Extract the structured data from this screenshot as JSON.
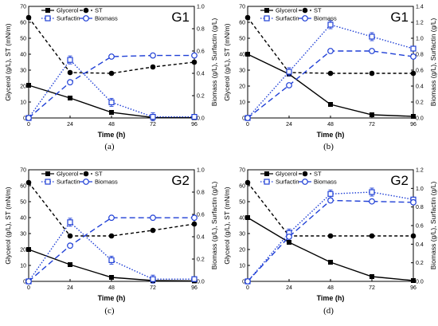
{
  "colors": {
    "black": "#000000",
    "blue": "#1f3fd6"
  },
  "chart_data": [
    {
      "type": "line",
      "panel_title": "G1",
      "caption": "(a)",
      "xlabel": "Time (h)",
      "ylabel_left": "Glycerol (g/L), ST (mN/m)",
      "ylabel_right": "Biomass (g/L), Surfactin (g/L)",
      "x": [
        0,
        24,
        48,
        72,
        96
      ],
      "xticks": [
        "0",
        "24",
        "48",
        "72",
        "96"
      ],
      "ylim_left": [
        0,
        70
      ],
      "yticks_left": [
        "0",
        "10",
        "20",
        "30",
        "40",
        "50",
        "60",
        "70"
      ],
      "ylim_right": [
        0,
        1.0
      ],
      "yticks_right": [
        "0.0",
        "0.2",
        "0.4",
        "0.6",
        "0.8",
        "1.0"
      ],
      "legend": [
        "Glycerol",
        "ST",
        "Surfactin",
        "Biomass"
      ],
      "series": [
        {
          "name": "Glycerol",
          "axis": "left",
          "values": [
            20.5,
            12.5,
            3.5,
            0.3,
            0.2
          ]
        },
        {
          "name": "ST",
          "axis": "left",
          "values": [
            63,
            28.5,
            28,
            32,
            35
          ]
        },
        {
          "name": "Surfactin",
          "axis": "right",
          "values": [
            0.0,
            0.52,
            0.14,
            0.01,
            0.01
          ]
        },
        {
          "name": "Biomass",
          "axis": "right",
          "values": [
            0.0,
            0.32,
            0.55,
            0.56,
            0.56
          ]
        }
      ]
    },
    {
      "type": "line",
      "panel_title": "G1",
      "caption": "(b)",
      "xlabel": "Time (h)",
      "ylabel_left": "Glycerol (g/L), ST (mN/m)",
      "ylabel_right": "Biomass (g/L), Surfactin (g/L)",
      "x": [
        0,
        24,
        48,
        72,
        96
      ],
      "xticks": [
        "0",
        "24",
        "48",
        "72",
        "96"
      ],
      "ylim_left": [
        0,
        70
      ],
      "yticks_left": [
        "0",
        "10",
        "20",
        "30",
        "40",
        "50",
        "60",
        "70"
      ],
      "ylim_right": [
        0,
        1.4
      ],
      "yticks_right": [
        "0.0",
        "0.2",
        "0.4",
        "0.6",
        "0.8",
        "1.0",
        "1.2",
        "1.4"
      ],
      "legend": [
        "Glycerol",
        "ST",
        "Surfactin",
        "Biomass"
      ],
      "series": [
        {
          "name": "Glycerol",
          "axis": "left",
          "values": [
            40,
            27.5,
            8.5,
            2,
            1
          ]
        },
        {
          "name": "ST",
          "axis": "left",
          "values": [
            63,
            28.5,
            28,
            28,
            28
          ]
        },
        {
          "name": "Surfactin",
          "axis": "right",
          "values": [
            0.0,
            0.58,
            1.17,
            1.02,
            0.87
          ]
        },
        {
          "name": "Biomass",
          "axis": "right",
          "values": [
            0.0,
            0.41,
            0.84,
            0.84,
            0.77
          ]
        }
      ]
    },
    {
      "type": "line",
      "panel_title": "G2",
      "caption": "(c)",
      "xlabel": "Time (h)",
      "ylabel_left": "Glycerol (g/L), ST (mN/m)",
      "ylabel_right": "Biomass (g/L), Surfactin (g/L)",
      "x": [
        0,
        24,
        48,
        72,
        96
      ],
      "xticks": [
        "0",
        "24",
        "48",
        "72",
        "96"
      ],
      "ylim_left": [
        0,
        70
      ],
      "yticks_left": [
        "0",
        "10",
        "20",
        "30",
        "40",
        "50",
        "60",
        "70"
      ],
      "ylim_right": [
        0,
        1.0
      ],
      "yticks_right": [
        "0.0",
        "0.2",
        "0.4",
        "0.6",
        "0.8",
        "1.0"
      ],
      "legend": [
        "Glycerol",
        "ST",
        "Surfactin",
        "Biomass"
      ],
      "series": [
        {
          "name": "Glycerol",
          "axis": "left",
          "values": [
            20,
            10.5,
            2.5,
            0.5,
            0.3
          ]
        },
        {
          "name": "ST",
          "axis": "left",
          "values": [
            62,
            28.5,
            28.5,
            32,
            36
          ]
        },
        {
          "name": "Surfactin",
          "axis": "right",
          "values": [
            0.0,
            0.53,
            0.19,
            0.02,
            0.02
          ]
        },
        {
          "name": "Biomass",
          "axis": "right",
          "values": [
            0.0,
            0.32,
            0.57,
            0.57,
            0.57
          ]
        }
      ]
    },
    {
      "type": "line",
      "panel_title": "G2",
      "caption": "(d)",
      "xlabel": "Time (h)",
      "ylabel_left": "Glycerol (g/L), ST (mN/m)",
      "ylabel_right": "Biomass (g/L), Surfactin (g/L)",
      "x": [
        0,
        24,
        48,
        72,
        96
      ],
      "xticks": [
        "0",
        "24",
        "48",
        "72",
        "96"
      ],
      "ylim_left": [
        0,
        70
      ],
      "yticks_left": [
        "0",
        "10",
        "20",
        "30",
        "40",
        "50",
        "60",
        "70"
      ],
      "ylim_right": [
        0,
        1.2
      ],
      "yticks_right": [
        "0.0",
        "0.2",
        "0.4",
        "0.6",
        "0.8",
        "1.0",
        "1.2"
      ],
      "legend": [
        "Glycerol",
        "ST",
        "Surfactin",
        "Biomass"
      ],
      "series": [
        {
          "name": "Glycerol",
          "axis": "left",
          "values": [
            40,
            24.5,
            12,
            3,
            0.5
          ]
        },
        {
          "name": "ST",
          "axis": "left",
          "values": [
            62,
            28.5,
            28.5,
            28.5,
            28.5
          ]
        },
        {
          "name": "Surfactin",
          "axis": "right",
          "values": [
            0.0,
            0.52,
            0.94,
            0.96,
            0.88
          ]
        },
        {
          "name": "Biomass",
          "axis": "right",
          "values": [
            0.0,
            0.48,
            0.87,
            0.86,
            0.85
          ]
        }
      ]
    }
  ]
}
